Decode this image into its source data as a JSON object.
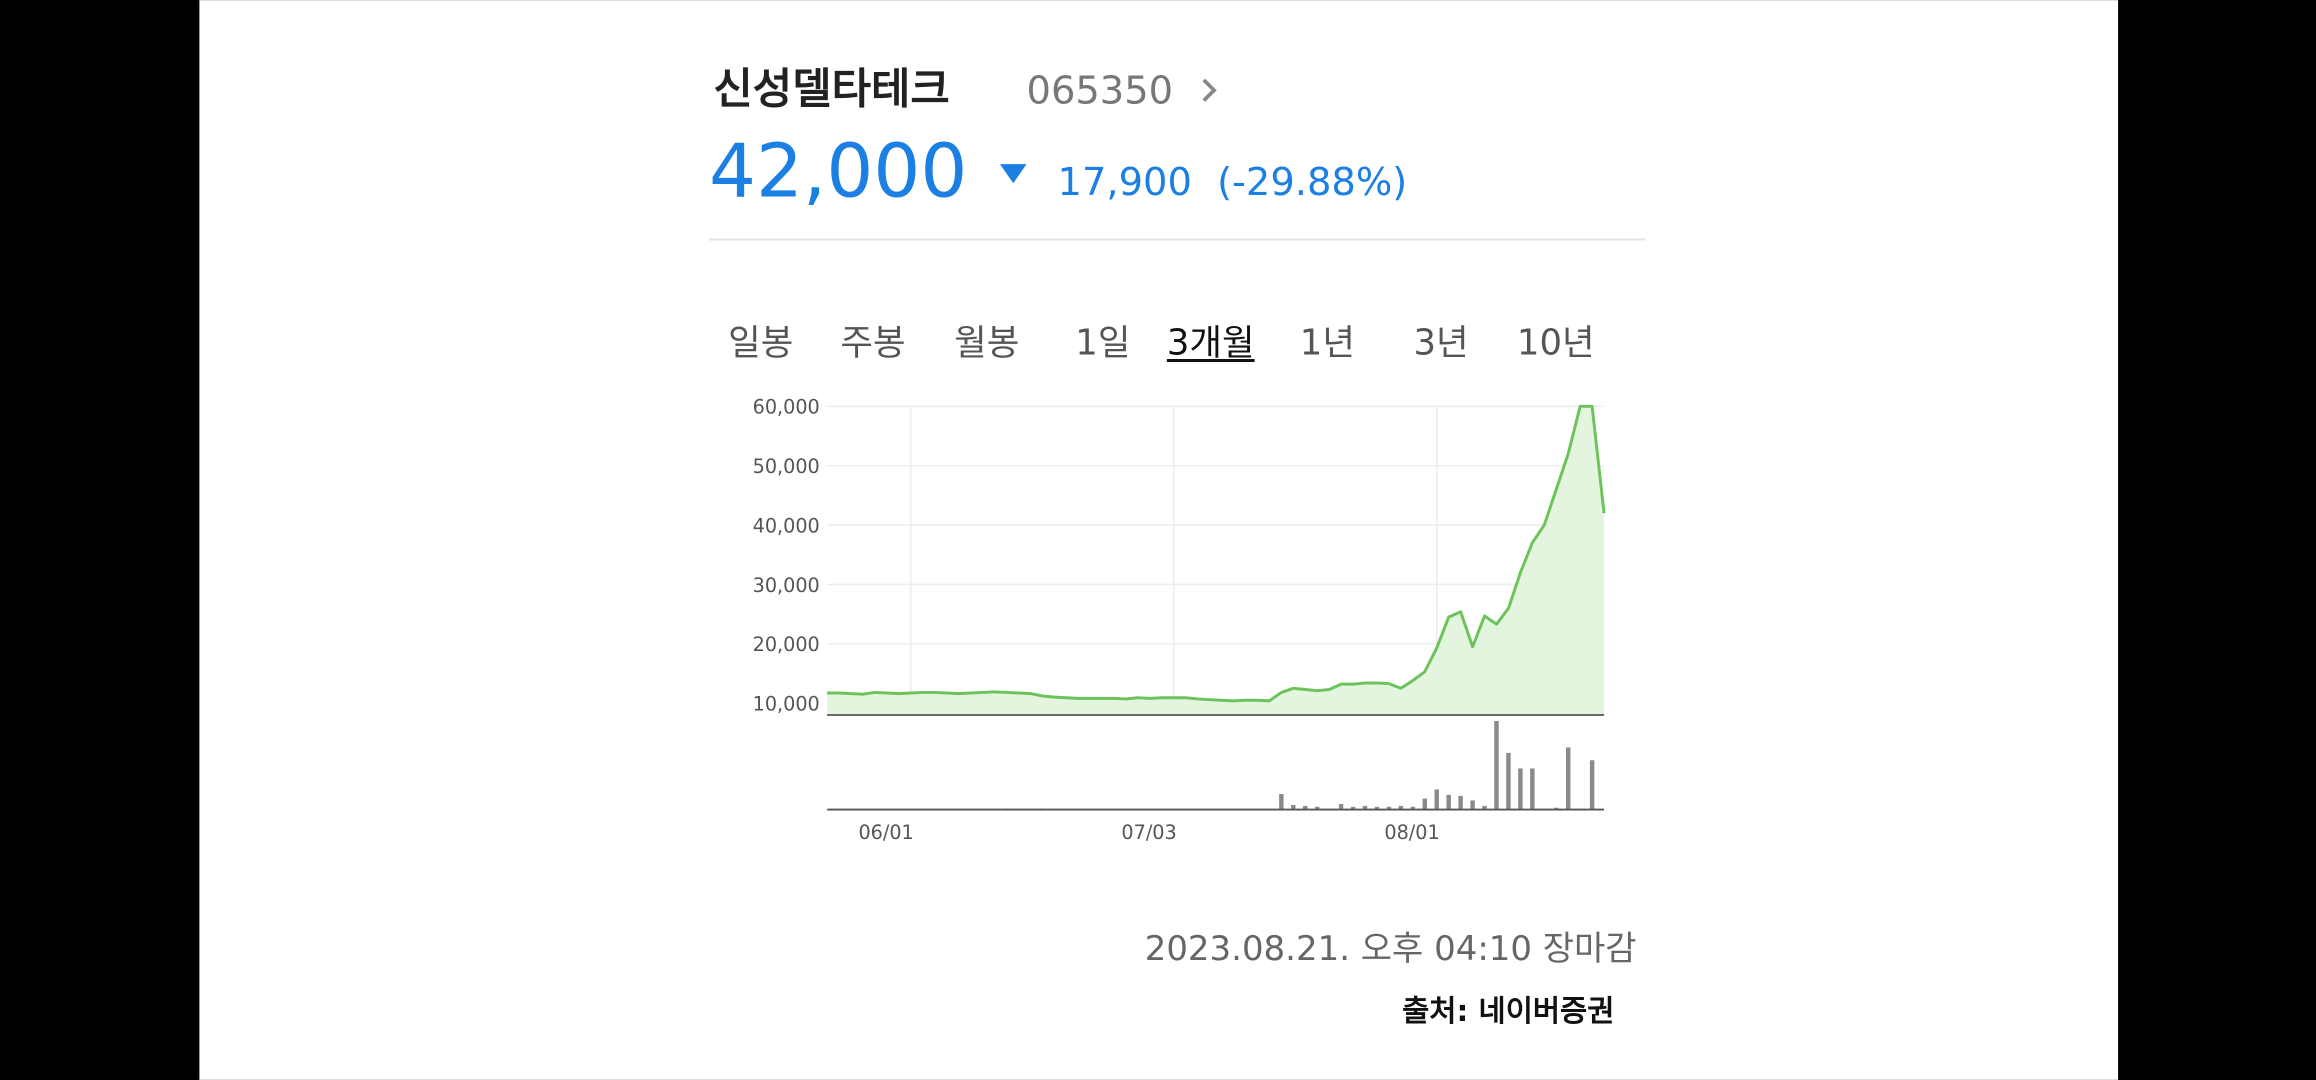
{
  "header": {
    "name": "신성델타테크",
    "code": "065350",
    "price": "42,000",
    "change": "17,900",
    "change_rate": "(-29.88%)"
  },
  "tabs": [
    "일봉",
    "주봉",
    "월봉",
    "1일",
    "3개월",
    "1년",
    "3년",
    "10년"
  ],
  "selected_tab": 4,
  "chart_data": {
    "type": "line",
    "categories": [
      null,
      null,
      null,
      null,
      null,
      null,
      null,
      "06/01",
      null,
      null,
      null,
      null,
      null,
      null,
      null,
      null,
      null,
      null,
      null,
      null,
      null,
      null,
      null,
      null,
      null,
      null,
      null,
      null,
      null,
      "07/03",
      null,
      null,
      null,
      null,
      null,
      null,
      null,
      null,
      null,
      null,
      null,
      null,
      null,
      null,
      null,
      null,
      null,
      null,
      null,
      null,
      null,
      "08/01",
      null,
      null,
      null,
      null,
      null,
      null,
      null,
      null,
      null,
      null,
      null,
      null,
      null,
      null
    ],
    "values": [
      11700,
      11700,
      11600,
      11500,
      11800,
      11700,
      11600,
      11700,
      11800,
      11800,
      11700,
      11600,
      11700,
      11800,
      11900,
      11800,
      11700,
      11600,
      11200,
      11000,
      10900,
      10800,
      10800,
      10800,
      10800,
      10700,
      10900,
      10800,
      10900,
      10900,
      10900,
      10700,
      10600,
      10500,
      10400,
      10500,
      10500,
      10400,
      11800,
      12500,
      12300,
      12100,
      12300,
      13200,
      13200,
      13400,
      13400,
      13300,
      12500,
      13800,
      15300,
      19300,
      24500,
      25400,
      19500,
      24700,
      23300,
      26000,
      32000,
      37000,
      40000,
      46000,
      52000,
      60000,
      60000,
      42000
    ],
    "color": "#6cc35a",
    "fill_color": "#e3f5df",
    "ylim": [
      8000,
      60000
    ],
    "yticks": [
      {
        "value": 10000,
        "label": "10,000"
      },
      {
        "value": 20000,
        "label": "20,000"
      },
      {
        "value": 30000,
        "label": "30,000"
      },
      {
        "value": 40000,
        "label": "40,000"
      },
      {
        "value": 50000,
        "label": "50,000"
      },
      {
        "value": 60000,
        "label": "60,000"
      }
    ],
    "grid": true,
    "volume": {
      "color": "#8a8a8a",
      "values": [
        0,
        0,
        0,
        0,
        0,
        0,
        0,
        0,
        0,
        0,
        0,
        0,
        0,
        0,
        0,
        1,
        0,
        0,
        1,
        0,
        0,
        0,
        0,
        0,
        0,
        0,
        0,
        0,
        0,
        0,
        0,
        0,
        0,
        0,
        0,
        0,
        0,
        0,
        17,
        5,
        4,
        3,
        0,
        6,
        3,
        4,
        3,
        3,
        4,
        3,
        12,
        22,
        16,
        15,
        10,
        4,
        97,
        62,
        45,
        45,
        0,
        2,
        68,
        0,
        54,
        0
      ]
    }
  },
  "footer": {
    "timestamp": "2023.08.21. 오후 04:10 장마감",
    "source": "출처: 네이버증권"
  }
}
